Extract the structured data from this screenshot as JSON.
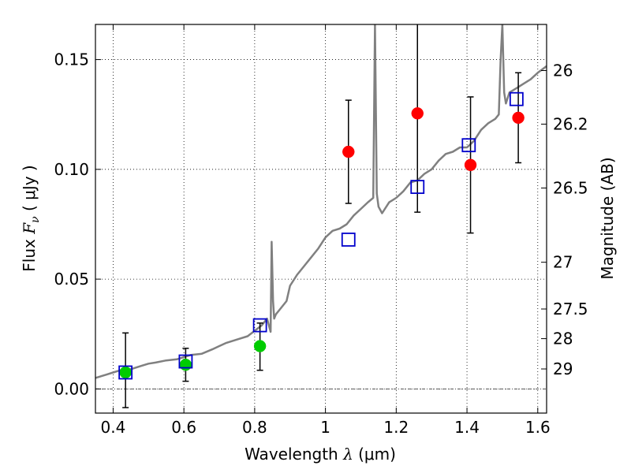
{
  "chart_data": {
    "type": "scatter",
    "x_axis": {
      "label_prefix": "Wavelength",
      "label_symbol": "λ",
      "label_unit": "(μm)",
      "range": [
        0.35,
        1.625
      ],
      "ticks": [
        0.4,
        0.6,
        0.8,
        1.0,
        1.2,
        1.4,
        1.6
      ],
      "tick_labels": [
        "0.4",
        "0.6",
        "0.8",
        "1",
        "1.2",
        "1.4",
        "1.6"
      ]
    },
    "y_axis": {
      "label_prefix": "Flux",
      "label_symbol": "F",
      "label_subscript": "ν",
      "label_unit": "( μJy )",
      "range": [
        -0.011,
        0.166
      ],
      "ticks": [
        0.0,
        0.05,
        0.1,
        0.15
      ],
      "tick_labels": [
        "0.00",
        "0.05",
        "0.10",
        "0.15"
      ]
    },
    "right_axis": {
      "label": "Magnitude (AB)",
      "ticks": [
        {
          "label": "26",
          "flux": 0.145
        },
        {
          "label": "26.2",
          "flux": 0.1206
        },
        {
          "label": "26.5",
          "flux": 0.0915
        },
        {
          "label": "27",
          "flux": 0.0577
        },
        {
          "label": "27.5",
          "flux": 0.0364
        },
        {
          "label": "28",
          "flux": 0.0229
        },
        {
          "label": "29",
          "flux": 0.0091
        }
      ]
    },
    "grid": true,
    "zero_line": true,
    "model_spectrum": {
      "color": "#808080",
      "x": [
        0.35,
        0.38,
        0.4,
        0.42,
        0.45,
        0.48,
        0.5,
        0.52,
        0.55,
        0.58,
        0.6,
        0.62,
        0.65,
        0.68,
        0.7,
        0.72,
        0.75,
        0.78,
        0.8,
        0.82,
        0.835,
        0.845,
        0.848,
        0.852,
        0.855,
        0.86,
        0.87,
        0.88,
        0.89,
        0.9,
        0.92,
        0.94,
        0.96,
        0.98,
        1.0,
        1.02,
        1.04,
        1.06,
        1.08,
        1.1,
        1.12,
        1.135,
        1.14,
        1.145,
        1.15,
        1.16,
        1.18,
        1.2,
        1.22,
        1.24,
        1.26,
        1.28,
        1.3,
        1.32,
        1.34,
        1.36,
        1.38,
        1.4,
        1.42,
        1.44,
        1.46,
        1.48,
        1.49,
        1.495,
        1.5,
        1.505,
        1.51,
        1.52,
        1.54,
        1.56,
        1.58,
        1.6,
        1.625
      ],
      "y": [
        0.005,
        0.0065,
        0.0075,
        0.0085,
        0.009,
        0.0105,
        0.0115,
        0.012,
        0.013,
        0.0135,
        0.0145,
        0.0155,
        0.016,
        0.018,
        0.0195,
        0.021,
        0.0225,
        0.024,
        0.0265,
        0.029,
        0.032,
        0.026,
        0.067,
        0.04,
        0.032,
        0.034,
        0.036,
        0.038,
        0.04,
        0.047,
        0.052,
        0.056,
        0.06,
        0.064,
        0.069,
        0.072,
        0.073,
        0.075,
        0.079,
        0.082,
        0.085,
        0.087,
        0.166,
        0.089,
        0.083,
        0.08,
        0.085,
        0.087,
        0.09,
        0.094,
        0.095,
        0.098,
        0.1,
        0.104,
        0.107,
        0.108,
        0.11,
        0.11,
        0.113,
        0.118,
        0.121,
        0.123,
        0.125,
        0.15,
        0.166,
        0.135,
        0.13,
        0.135,
        0.137,
        0.139,
        0.141,
        0.144,
        0.147
      ]
    },
    "series": [
      {
        "marker": "circle",
        "color": "#00cc00",
        "x": [
          0.435,
          0.605,
          0.815
        ],
        "y": [
          0.0075,
          0.011,
          0.0195
        ],
        "err_low": [
          0.016,
          0.0075,
          0.011
        ],
        "err_high": [
          0.018,
          0.0075,
          0.0105
        ]
      },
      {
        "marker": "circle",
        "color": "#ff0000",
        "x": [
          1.065,
          1.26,
          1.41,
          1.545
        ],
        "y": [
          0.108,
          0.1255,
          0.102,
          0.1235
        ],
        "err_low": [
          0.0235,
          0.045,
          0.031,
          0.0205
        ],
        "err_high": [
          0.0235,
          0.045,
          0.031,
          0.0205
        ]
      },
      {
        "marker": "square",
        "color": "#0000cc",
        "x": [
          0.435,
          0.605,
          0.815,
          1.065,
          1.26,
          1.405,
          1.54
        ],
        "y": [
          0.0075,
          0.0125,
          0.029,
          0.068,
          0.092,
          0.111,
          0.132
        ]
      }
    ]
  }
}
